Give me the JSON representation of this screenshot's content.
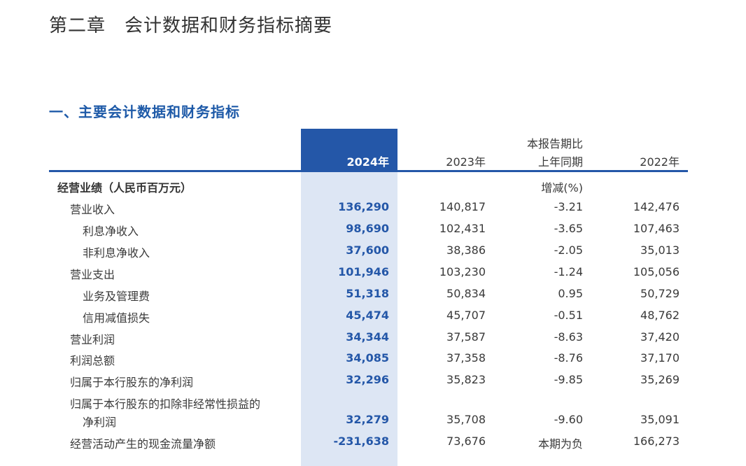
{
  "chapter_title": "第二章　会计数据和财务指标摘要",
  "section_title": "一、主要会计数据和财务指标",
  "table": {
    "headers": {
      "y2024": "2024年",
      "y2023": "2023年",
      "change_line1": "本报告期比",
      "change_line2": "上年同期",
      "y2022": "2022年"
    },
    "rows": [
      {
        "label": "经营业绩（人民币百万元）",
        "y2024": "",
        "y2023": "",
        "change": "增减(%)",
        "y2022": ""
      },
      {
        "label": "营业收入",
        "y2024": "136,290",
        "y2023": "140,817",
        "change": "-3.21",
        "y2022": "142,476"
      },
      {
        "label": "利息净收入",
        "y2024": "98,690",
        "y2023": "102,431",
        "change": "-3.65",
        "y2022": "107,463"
      },
      {
        "label": "非利息净收入",
        "y2024": "37,600",
        "y2023": "38,386",
        "change": "-2.05",
        "y2022": "35,013"
      },
      {
        "label": "营业支出",
        "y2024": "101,946",
        "y2023": "103,230",
        "change": "-1.24",
        "y2022": "105,056"
      },
      {
        "label": "业务及管理费",
        "y2024": "51,318",
        "y2023": "50,834",
        "change": "0.95",
        "y2022": "50,729"
      },
      {
        "label": "信用减值损失",
        "y2024": "45,474",
        "y2023": "45,707",
        "change": "-0.51",
        "y2022": "48,762"
      },
      {
        "label": "营业利润",
        "y2024": "34,344",
        "y2023": "37,587",
        "change": "-8.63",
        "y2022": "37,420"
      },
      {
        "label": "利润总额",
        "y2024": "34,085",
        "y2023": "37,358",
        "change": "-8.76",
        "y2022": "37,170"
      },
      {
        "label": "归属于本行股东的净利润",
        "y2024": "32,296",
        "y2023": "35,823",
        "change": "-9.85",
        "y2022": "35,269"
      },
      {
        "label": "归属于本行股东的扣除非经常性损益的",
        "y2024": "",
        "y2023": "",
        "change": "",
        "y2022": ""
      },
      {
        "label": "净利润",
        "y2024": "32,279",
        "y2023": "35,708",
        "change": "-9.60",
        "y2022": "35,091"
      },
      {
        "label": "经营活动产生的现金流量净额",
        "y2024": "-231,638",
        "y2023": "73,676",
        "change": "本期为负",
        "y2022": "166,273"
      }
    ]
  },
  "colors": {
    "accent_blue": "#2457a8",
    "highlight_column": "#dde6f4",
    "section_title": "#1e5aa8"
  }
}
